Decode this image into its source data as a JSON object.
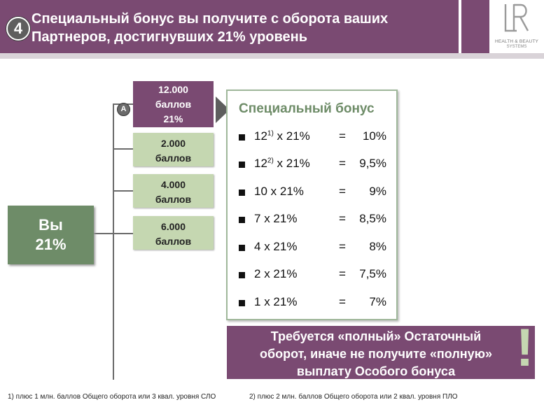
{
  "header": {
    "step_number": "4",
    "title_line1": "Специальный бонус вы получите с оборота ваших",
    "title_line2": "Партнеров, достигнувших 21% уровень"
  },
  "logo": {
    "mark": "LR",
    "line1": "HEALTH & BEAUTY",
    "line2": "SYSTEMS"
  },
  "you": {
    "line1": "Вы",
    "line2": "21%"
  },
  "badge": "A",
  "partners": [
    {
      "line1": "12.000",
      "line2": "баллов",
      "line3": "21%"
    },
    {
      "line1": "2.000",
      "line2": "баллов"
    },
    {
      "line1": "4.000",
      "line2": "баллов"
    },
    {
      "line1": "6.000",
      "line2": "баллов"
    }
  ],
  "bonus": {
    "title": "Специальный бонус",
    "rows": [
      {
        "base": "12",
        "sup": "1)",
        "mult": " x 21%",
        "eq": "=",
        "result": "10%"
      },
      {
        "base": "12",
        "sup": "2)",
        "mult": " x 21%",
        "eq": "=",
        "result": "9,5%"
      },
      {
        "base": "10",
        "sup": "",
        "mult": " x 21%",
        "eq": "=",
        "result": "9%"
      },
      {
        "base": "7",
        "sup": "",
        "mult": " x 21%",
        "eq": "=",
        "result": "8,5%"
      },
      {
        "base": "4",
        "sup": "",
        "mult": " x 21%",
        "eq": "=",
        "result": "8%"
      },
      {
        "base": "2",
        "sup": "",
        "mult": " x 21%",
        "eq": "=",
        "result": "7,5%"
      },
      {
        "base": "1",
        "sup": "",
        "mult": " x 21%",
        "eq": "=",
        "result": "7%"
      }
    ]
  },
  "notice": {
    "line1": "Требуется «полный» Остаточный",
    "line2": "оборот, иначе не получите «полную»",
    "line3": "выплату Особого бонуса",
    "mark": "!"
  },
  "footnotes": {
    "one": "1)  плюс 1 млн. баллов Общего оборота или 3 квал. уровня СЛО",
    "two": "2)  плюс 2 млн. баллов Общего оборота или 2 квал. уровня ПЛО"
  },
  "colors": {
    "purple": "#7a4a72",
    "green_dark": "#6e8c68",
    "green_light": "#c5d7b1"
  }
}
